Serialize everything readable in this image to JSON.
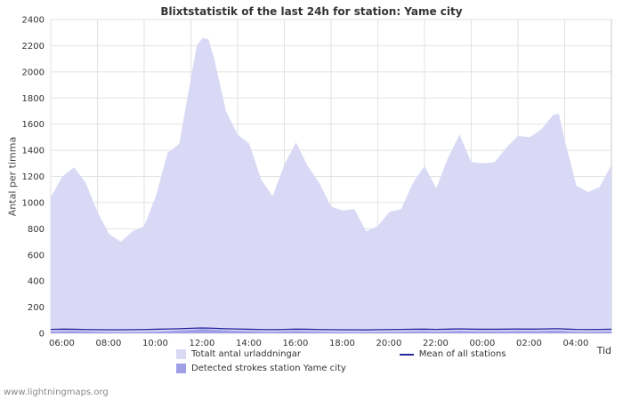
{
  "footer": "www.lightningmaps.org",
  "chart_data": {
    "type": "area",
    "title": "Blixtstatistik of the last 24h for station: Yame city",
    "ylabel": "Antal per timma",
    "xlabel": "Tid",
    "x_range": [
      0,
      24
    ],
    "ylim": [
      0,
      2400
    ],
    "grid": true,
    "legend_position": "bottom",
    "y_ticks": [
      0,
      200,
      400,
      600,
      800,
      1000,
      1200,
      1400,
      1600,
      1800,
      2000,
      2200,
      2400
    ],
    "x_ticks": [
      {
        "t": 0,
        "label": "06:00"
      },
      {
        "t": 2,
        "label": "08:00"
      },
      {
        "t": 4,
        "label": "10:00"
      },
      {
        "t": 6,
        "label": "12:00"
      },
      {
        "t": 8,
        "label": "14:00"
      },
      {
        "t": 10,
        "label": "16:00"
      },
      {
        "t": 12,
        "label": "18:00"
      },
      {
        "t": 14,
        "label": "20:00"
      },
      {
        "t": 16,
        "label": "22:00"
      },
      {
        "t": 18,
        "label": "00:00"
      },
      {
        "t": 20,
        "label": "02:00"
      },
      {
        "t": 22,
        "label": "04:00"
      }
    ],
    "x": [
      0,
      0.5,
      1,
      1.5,
      2,
      2.5,
      3,
      3.5,
      4,
      4.5,
      5,
      5.5,
      6,
      6.25,
      6.5,
      6.75,
      7,
      7.5,
      8,
      8.5,
      9,
      9.5,
      10,
      10.5,
      11,
      11.5,
      12,
      12.5,
      13,
      13.5,
      14,
      14.5,
      15,
      15.5,
      16,
      16.5,
      17,
      17.5,
      18,
      18.5,
      19,
      19.5,
      20,
      20.5,
      21,
      21.5,
      21.75,
      22,
      22.5,
      23,
      23.5,
      24
    ],
    "series": [
      {
        "name": "Totalt antal urladdningar",
        "type": "area",
        "color": "#d9d9f6",
        "values": [
          1040,
          1200,
          1270,
          1150,
          930,
          760,
          700,
          780,
          820,
          1050,
          1380,
          1450,
          1950,
          2200,
          2260,
          2250,
          2100,
          1700,
          1520,
          1450,
          1180,
          1050,
          1290,
          1460,
          1280,
          1150,
          970,
          940,
          950,
          780,
          820,
          930,
          950,
          1150,
          1280,
          1110,
          1340,
          1520,
          1310,
          1300,
          1310,
          1420,
          1510,
          1500,
          1560,
          1670,
          1680,
          1480,
          1130,
          1080,
          1120,
          1290
        ]
      },
      {
        "name": "Detected strokes station Yame city",
        "type": "area",
        "color": "#9f9fe8",
        "values": [
          14,
          16,
          18,
          15,
          12,
          10,
          9,
          10,
          11,
          13,
          17,
          20,
          26,
          30,
          32,
          31,
          28,
          22,
          19,
          17,
          14,
          12,
          15,
          18,
          16,
          14,
          11,
          10,
          10,
          9,
          11,
          12,
          13,
          15,
          17,
          14,
          16,
          19,
          16,
          15,
          15,
          16,
          18,
          17,
          18,
          20,
          20,
          18,
          13,
          12,
          14,
          15
        ]
      },
      {
        "name": "Mean of all stations",
        "type": "line",
        "color": "#26269e",
        "values": [
          30,
          32,
          31,
          29,
          28,
          27,
          27,
          28,
          29,
          31,
          33,
          35,
          38,
          40,
          41,
          40,
          38,
          35,
          33,
          31,
          29,
          28,
          30,
          32,
          31,
          29,
          28,
          27,
          27,
          26,
          28,
          29,
          30,
          31,
          32,
          30,
          32,
          34,
          32,
          31,
          31,
          32,
          33,
          32,
          33,
          35,
          35,
          33,
          30,
          29,
          30,
          31
        ]
      }
    ]
  }
}
